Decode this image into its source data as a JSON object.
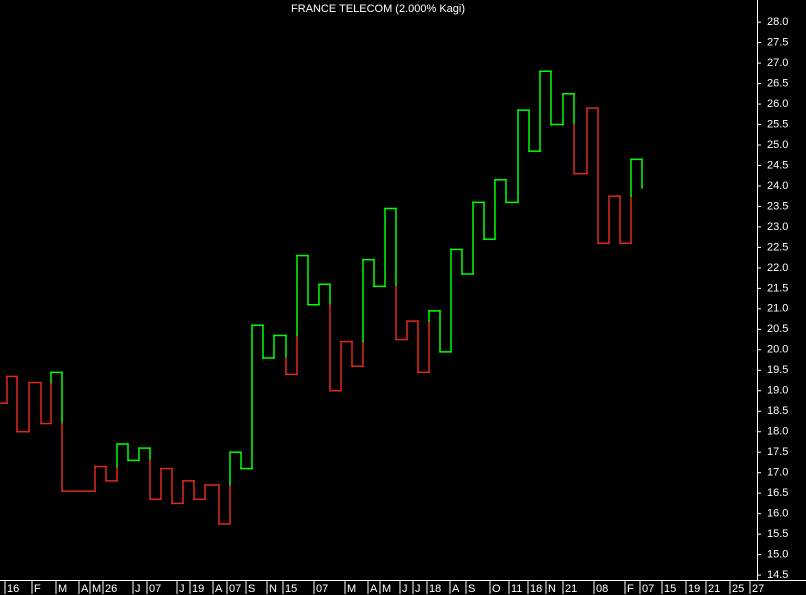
{
  "chart_data": {
    "type": "kagi",
    "title": "FRANCE TELECOM (2.000% Kagi)",
    "yang_color": "#00ff00",
    "yin_color": "#e0281e",
    "initial_color": "yin",
    "x": [
      0,
      0.7,
      1.7,
      2.9,
      4.1,
      5.1,
      6.2,
      9.5,
      10.6,
      11.7,
      12.8,
      13.9,
      15.0,
      16.1,
      17.2,
      18.3,
      19.4,
      20.5,
      21.9,
      23.0,
      24.1,
      25.2,
      26.3,
      27.4,
      28.6,
      29.7,
      30.8,
      31.9,
      33.0,
      34.1,
      35.2,
      36.3,
      37.4,
      38.5,
      39.6,
      40.7,
      41.8,
      42.9,
      44.0,
      45.1,
      46.2,
      47.3,
      48.4,
      49.5,
      50.6,
      51.8,
      52.9,
      54.0,
      55.1,
      56.3,
      57.4,
      58.7,
      59.8,
      60.9,
      62.0,
      63.1,
      64.2
    ],
    "values": [
      18.7,
      19.35,
      18.0,
      19.2,
      18.2,
      19.45,
      16.55,
      17.15,
      16.8,
      17.7,
      17.3,
      17.6,
      16.35,
      17.1,
      16.25,
      16.8,
      16.35,
      16.7,
      15.75,
      17.5,
      17.1,
      20.6,
      19.8,
      20.35,
      19.4,
      22.3,
      21.1,
      21.6,
      19.0,
      20.2,
      19.6,
      22.2,
      21.55,
      23.45,
      20.25,
      20.7,
      19.45,
      20.95,
      19.95,
      22.45,
      21.85,
      23.6,
      22.7,
      24.15,
      23.6,
      25.85,
      24.85,
      26.8,
      25.5,
      26.25,
      24.3,
      25.9,
      22.6,
      23.75,
      22.6,
      24.65,
      23.95
    ],
    "xlim": [
      0,
      75.7
    ],
    "ylim": [
      14.38,
      28.54
    ],
    "yticks": [
      14.5,
      {
        "value": 15,
        "label": "15.0"
      },
      15.5,
      {
        "value": 16,
        "label": "16.0"
      },
      16.5,
      {
        "value": 17,
        "label": "17.0"
      },
      17.5,
      {
        "value": 18,
        "label": "18.0"
      },
      18.5,
      {
        "value": 19,
        "label": "19.0"
      },
      19.5,
      {
        "value": 20,
        "label": "20.0"
      },
      20.5,
      {
        "value": 21,
        "label": "21.0"
      },
      21.5,
      {
        "value": 22,
        "label": "22.0"
      },
      22.5,
      {
        "value": 23,
        "label": "23.0"
      },
      23.5,
      {
        "value": 24,
        "label": "24.0"
      },
      24.5,
      {
        "value": 25,
        "label": "25.0"
      },
      25.5,
      {
        "value": 26,
        "label": "26.0"
      },
      26.5,
      {
        "value": 27,
        "label": "27.0"
      },
      27.5,
      {
        "value": 28,
        "label": "28.0"
      }
    ],
    "xticks": [
      {
        "value": 0.5,
        "label": "16"
      },
      {
        "value": 3.2,
        "label": "F"
      },
      {
        "value": 5.6,
        "label": "M"
      },
      {
        "value": 7.9,
        "label": "A"
      },
      {
        "value": 9.0,
        "label": "M"
      },
      {
        "value": 10.3,
        "label": "26"
      },
      {
        "value": 13.3,
        "label": "J"
      },
      {
        "value": 14.7,
        "label": "07"
      },
      {
        "value": 17.7,
        "label": "J"
      },
      {
        "value": 19.0,
        "label": "19"
      },
      {
        "value": 21.3,
        "label": "A"
      },
      {
        "value": 22.7,
        "label": "07"
      },
      {
        "value": 24.6,
        "label": "S"
      },
      {
        "value": 26.7,
        "label": "N"
      },
      {
        "value": 28.3,
        "label": "15"
      },
      {
        "value": 31.4,
        "label": "07"
      },
      {
        "value": 34.5,
        "label": "M"
      },
      {
        "value": 36.8,
        "label": "A"
      },
      {
        "value": 38.0,
        "label": "M"
      },
      {
        "value": 40.0,
        "label": "J"
      },
      {
        "value": 41.3,
        "label": "J"
      },
      {
        "value": 42.7,
        "label": "18"
      },
      {
        "value": 45.0,
        "label": "A"
      },
      {
        "value": 46.6,
        "label": "S"
      },
      {
        "value": 49.0,
        "label": "O"
      },
      {
        "value": 50.9,
        "label": "11"
      },
      {
        "value": 52.8,
        "label": "18"
      },
      {
        "value": 54.6,
        "label": "N"
      },
      {
        "value": 56.3,
        "label": "21"
      },
      {
        "value": 59.4,
        "label": "08"
      },
      {
        "value": 62.5,
        "label": "F"
      },
      {
        "value": 64.0,
        "label": "07"
      },
      {
        "value": 66.2,
        "label": "15"
      },
      {
        "value": 68.6,
        "label": "19"
      },
      {
        "value": 70.6,
        "label": "21"
      },
      {
        "value": 73.0,
        "label": "25"
      },
      {
        "value": 75.0,
        "label": "27"
      }
    ]
  }
}
